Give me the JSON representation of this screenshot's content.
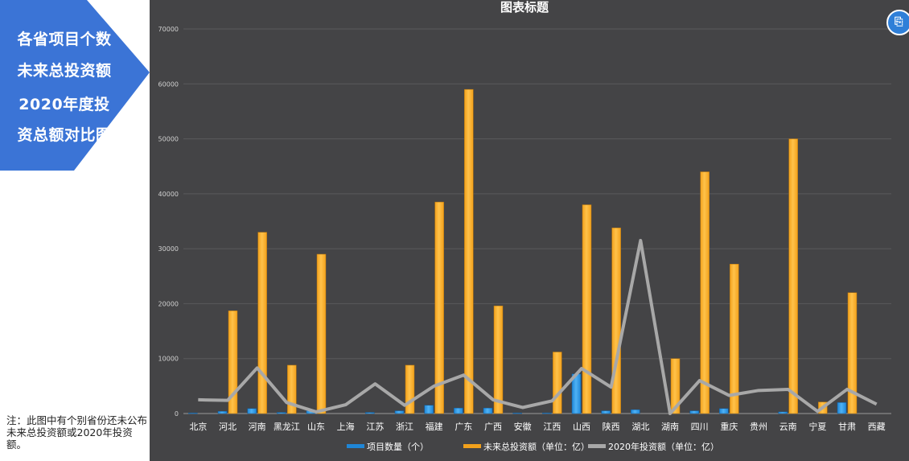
{
  "side_title": [
    "各省项目个数",
    "未来总投资额",
    "2020年度投",
    "资总额对比图"
  ],
  "note": "注：此图中有个别省份还未公布未来总投资额或2020年投资额。",
  "colors": {
    "panel": "#3b74d6",
    "bg": "#444446",
    "bar_blue": "#1f86d6",
    "bar_orange": "#f2a11c",
    "line_gray": "#a8a8a8"
  },
  "icons": [
    "image-icon"
  ],
  "chart_data": {
    "type": "bar",
    "title": "图表标题",
    "categories": [
      "北京",
      "河北",
      "河南",
      "黑龙江",
      "山东",
      "上海",
      "江苏",
      "浙江",
      "福建",
      "广东",
      "广西",
      "安徽",
      "江西",
      "山西",
      "陕西",
      "湖北",
      "湖南",
      "四川",
      "重庆",
      "贵州",
      "云南",
      "宁夏",
      "甘肃",
      "西藏"
    ],
    "ylim": [
      0,
      70000
    ],
    "yticks": [
      0,
      10000,
      20000,
      30000,
      40000,
      50000,
      60000,
      70000
    ],
    "grid": true,
    "legend": "bottom",
    "series": [
      {
        "name": "项目数量（个）",
        "kind": "bar",
        "values": [
          100,
          400,
          900,
          200,
          500,
          0,
          200,
          500,
          1500,
          1000,
          1000,
          100,
          100,
          7200,
          500,
          700,
          0,
          500,
          900,
          0,
          300,
          0,
          2000,
          0
        ]
      },
      {
        "name": "未来总投资额（单位：亿）",
        "kind": "bar",
        "values": [
          0,
          18700,
          33000,
          8800,
          29000,
          0,
          0,
          8800,
          38500,
          59000,
          19600,
          0,
          11200,
          38000,
          33800,
          0,
          10000,
          44000,
          27200,
          0,
          50000,
          2100,
          22000,
          0
        ]
      },
      {
        "name": "2020年投资额（单位：亿）",
        "kind": "line",
        "values": [
          2500,
          2400,
          8300,
          2000,
          300,
          1600,
          5400,
          1500,
          5000,
          7000,
          2500,
          1100,
          2300,
          8200,
          4800,
          31500,
          0,
          6000,
          3300,
          4200,
          4400,
          400,
          4400,
          1700
        ]
      }
    ]
  }
}
